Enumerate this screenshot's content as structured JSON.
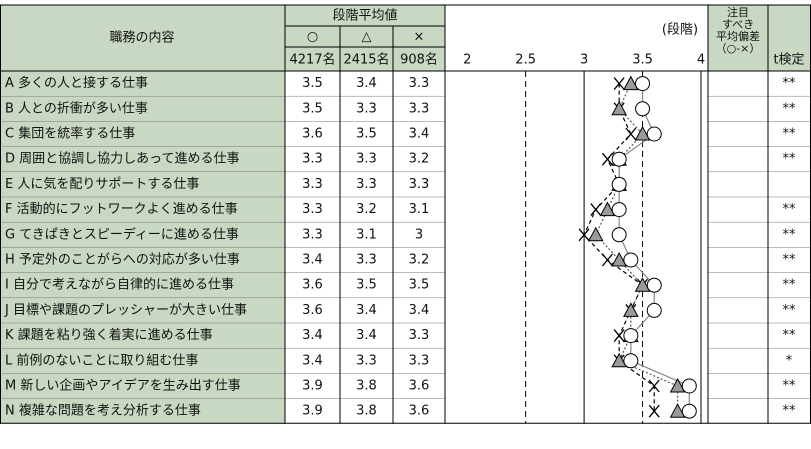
{
  "table": {
    "header": {
      "job": "職務の内容",
      "avg": "段階平均値",
      "symbols": [
        "○",
        "△",
        "×"
      ],
      "counts": [
        "4217名",
        "2415名",
        "908名"
      ],
      "unit": "(段階)",
      "deviation": [
        "注目",
        "すべき",
        "平均偏差",
        "（○-×）"
      ],
      "ttest": "t検定"
    },
    "rows": [
      {
        "label": "A 多くの人と接する仕事",
        "values": [
          3.5,
          3.4,
          3.3
        ],
        "ttest": "**"
      },
      {
        "label": "B 人との折衝が多い仕事",
        "values": [
          3.5,
          3.3,
          3.3
        ],
        "ttest": "**"
      },
      {
        "label": "C 集団を統率する仕事",
        "values": [
          3.6,
          3.5,
          3.4
        ],
        "ttest": "**"
      },
      {
        "label": "D 周囲と協調し協力しあって進める仕事",
        "values": [
          3.3,
          3.3,
          3.2
        ],
        "ttest": "**"
      },
      {
        "label": "E 人に気を配りサポートする仕事",
        "values": [
          3.3,
          3.3,
          3.3
        ],
        "ttest": null
      },
      {
        "label": "F 活動的にフットワークよく進める仕事",
        "values": [
          3.3,
          3.2,
          3.1
        ],
        "ttest": "**"
      },
      {
        "label": "G てきぱきとスピーディーに進める仕事",
        "values": [
          3.3,
          3.1,
          3.0
        ],
        "ttest": "**"
      },
      {
        "label": "H 予定外のことがらへの対応が多い仕事",
        "values": [
          3.4,
          3.3,
          3.2
        ],
        "ttest": "**"
      },
      {
        "label": "I 自分で考えながら自律的に進める仕事",
        "values": [
          3.6,
          3.5,
          3.5
        ],
        "ttest": "**"
      },
      {
        "label": "J 目標や課題のプレッシャーが大きい仕事",
        "values": [
          3.6,
          3.4,
          3.4
        ],
        "ttest": "**"
      },
      {
        "label": "K 課題を粘り強く着実に進める仕事",
        "values": [
          3.4,
          3.4,
          3.3
        ],
        "ttest": "**"
      },
      {
        "label": "L 前例のないことに取り組む仕事",
        "values": [
          3.4,
          3.3,
          3.3
        ],
        "ttest": "*"
      },
      {
        "label": "M 新しい企画やアイデアを生み出す仕事",
        "values": [
          3.9,
          3.8,
          3.6
        ],
        "ttest": "**"
      },
      {
        "label": "N 複雑な問題を考え分析する仕事",
        "values": [
          3.9,
          3.8,
          3.6
        ],
        "ttest": "**"
      }
    ]
  },
  "chart": {
    "xlim": [
      1.81,
      4.06
    ],
    "xticks": [
      2,
      2.5,
      3,
      3.5,
      4
    ],
    "solid_lines": [
      3,
      4
    ],
    "dashed_lines": [
      2.5,
      3.5
    ]
  }
}
